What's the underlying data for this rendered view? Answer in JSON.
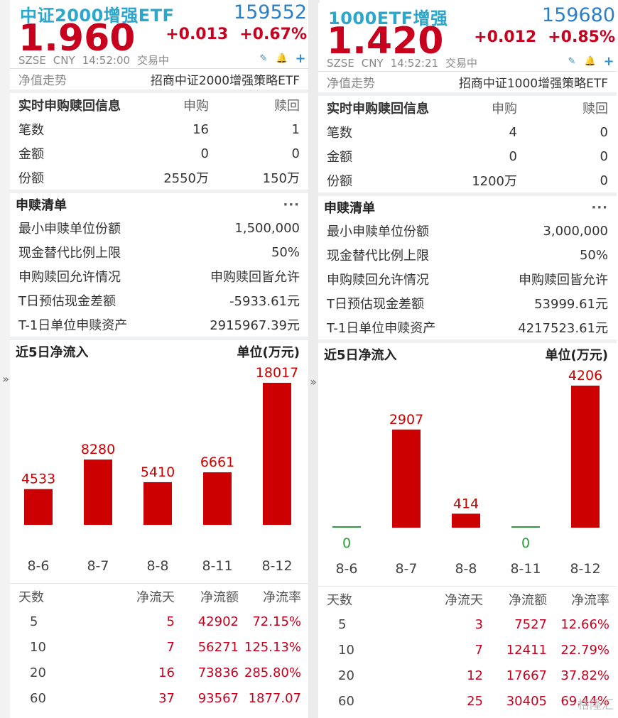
{
  "side_arrow": "»",
  "panels": [
    {
      "name": "中证2000增强ETF",
      "code": "159552",
      "price": "1.960",
      "change": "+0.013",
      "change_pct": "+0.67%",
      "exchange": "SZSE",
      "currency": "CNY",
      "time": "14:52:00",
      "status": "交易中",
      "tools": [
        "edit-icon",
        "bell-icon",
        "plus-icon"
      ],
      "nav_label": "净值走势",
      "fund_name": "招商中证2000增强策略ETF",
      "realtime": {
        "title": "实时申购赎回信息",
        "col_sub": "申购",
        "col_red": "赎回",
        "rows": [
          {
            "label": "笔数",
            "sub": "16",
            "red": "1"
          },
          {
            "label": "金额",
            "sub": "0",
            "red": "0"
          },
          {
            "label": "份额",
            "sub": "2550万",
            "red": "150万"
          }
        ]
      },
      "list": {
        "title": "申赎清单",
        "more": "···",
        "rows": [
          {
            "label": "最小申赎单位份额",
            "value": "1,500,000"
          },
          {
            "label": "现金替代比例上限",
            "value": "50%"
          },
          {
            "label": "申购赎回允许情况",
            "value": "申购赎回皆允许"
          },
          {
            "label": "T日预估现金差额",
            "value": "-5933.61元"
          },
          {
            "label": "T-1日单位申赎资产",
            "value": "2915967.39元"
          }
        ]
      },
      "chart_title": "近5日净流入",
      "chart_unit": "单位(万元)",
      "chart_data": {
        "type": "bar",
        "categories": [
          "8-6",
          "8-7",
          "8-8",
          "8-11",
          "8-12"
        ],
        "values": [
          4533,
          8280,
          5410,
          6661,
          18017
        ],
        "labels": [
          "4533",
          "8280",
          "5410",
          "6661",
          "18017"
        ],
        "title": "近5日净流入",
        "ylabel": "单位(万元)",
        "positive_color": "#cc0000",
        "zero_color": "#2e9b3c"
      },
      "stats": {
        "headers": [
          "天数",
          "净流天",
          "净流额",
          "净流率"
        ],
        "rows": [
          [
            "5",
            "5",
            "42902",
            "72.15%"
          ],
          [
            "10",
            "7",
            "56271",
            "125.13%"
          ],
          [
            "20",
            "16",
            "73836",
            "285.80%"
          ],
          [
            "60",
            "37",
            "93567",
            "1877.07"
          ]
        ]
      }
    },
    {
      "name": "1000ETF增强",
      "code": "159680",
      "price": "1.420",
      "change": "+0.012",
      "change_pct": "+0.85%",
      "exchange": "SZSE",
      "currency": "CNY",
      "time": "14:52:21",
      "status": "交易中",
      "tools": [
        "edit-icon",
        "bell-icon",
        "plus-icon"
      ],
      "nav_label": "净值走势",
      "fund_name": "招商中证1000增强策略ETF",
      "realtime": {
        "title": "实时申购赎回信息",
        "col_sub": "申购",
        "col_red": "赎回",
        "rows": [
          {
            "label": "笔数",
            "sub": "4",
            "red": "0"
          },
          {
            "label": "金额",
            "sub": "0",
            "red": "0"
          },
          {
            "label": "份额",
            "sub": "1200万",
            "red": "0"
          }
        ]
      },
      "list": {
        "title": "申赎清单",
        "more": "···",
        "rows": [
          {
            "label": "最小申赎单位份额",
            "value": "3,000,000"
          },
          {
            "label": "现金替代比例上限",
            "value": "50%"
          },
          {
            "label": "申购赎回允许情况",
            "value": "申购赎回皆允许"
          },
          {
            "label": "T日预估现金差额",
            "value": "53999.61元"
          },
          {
            "label": "T-1日单位申赎资产",
            "value": "4217523.61元"
          }
        ]
      },
      "chart_title": "近5日净流入",
      "chart_unit": "单位(万元)",
      "chart_data": {
        "type": "bar",
        "categories": [
          "8-6",
          "8-7",
          "8-8",
          "8-11",
          "8-12"
        ],
        "values": [
          0,
          2907,
          414,
          0,
          4206
        ],
        "labels": [
          "0",
          "2907",
          "414",
          "0",
          "4206"
        ],
        "title": "近5日净流入",
        "ylabel": "单位(万元)",
        "positive_color": "#cc0000",
        "zero_color": "#2e9b3c"
      },
      "stats": {
        "headers": [
          "天数",
          "净流天",
          "净流额",
          "净流率"
        ],
        "rows": [
          [
            "5",
            "3",
            "7527",
            "12.66%"
          ],
          [
            "10",
            "7",
            "12411",
            "22.79%"
          ],
          [
            "20",
            "12",
            "17667",
            "37.82%"
          ],
          [
            "60",
            "25",
            "30405",
            "69.44%"
          ]
        ]
      }
    }
  ],
  "watermark": "格隆汇"
}
